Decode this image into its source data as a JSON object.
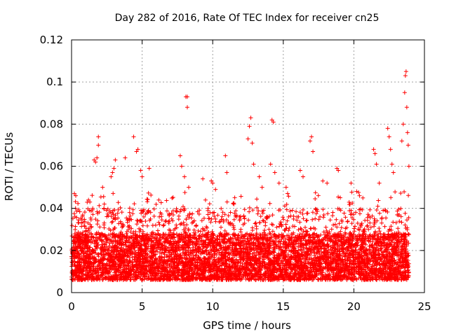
{
  "chart_data": {
    "type": "scatter",
    "title": "Day 282 of 2016, Rate Of TEC Index for receiver cn25",
    "xlabel": "GPS time / hours",
    "ylabel": "ROTI / TECUs",
    "xlim": [
      0,
      25
    ],
    "ylim": [
      0,
      0.12
    ],
    "xticks": [
      "0",
      "5",
      "10",
      "15",
      "20",
      "25"
    ],
    "yticks": [
      "0",
      "0.02",
      "0.04",
      "0.06",
      "0.08",
      "0.1",
      "0.12"
    ],
    "grid": true,
    "marker": "+",
    "color": "#ff0000",
    "series": [
      {
        "name": "ROTI",
        "note": "dense band of points between ~0.005 and ~0.04 across 0-24 h, with excursions",
        "points": [
          [
            0.2,
            0.047
          ],
          [
            0.3,
            0.046
          ],
          [
            1.2,
            0.044
          ],
          [
            1.3,
            0.043
          ],
          [
            1.5,
            0.04
          ],
          [
            1.6,
            0.063
          ],
          [
            1.7,
            0.062
          ],
          [
            1.8,
            0.064
          ],
          [
            1.9,
            0.074
          ],
          [
            1.9,
            0.07
          ],
          [
            2.2,
            0.05
          ],
          [
            2.8,
            0.055
          ],
          [
            2.9,
            0.057
          ],
          [
            3.0,
            0.059
          ],
          [
            3.1,
            0.063
          ],
          [
            3.8,
            0.064
          ],
          [
            4.4,
            0.074
          ],
          [
            4.6,
            0.067
          ],
          [
            4.7,
            0.068
          ],
          [
            4.9,
            0.058
          ],
          [
            5.0,
            0.055
          ],
          [
            5.5,
            0.059
          ],
          [
            7.7,
            0.065
          ],
          [
            7.8,
            0.06
          ],
          [
            8.0,
            0.055
          ],
          [
            8.1,
            0.093
          ],
          [
            8.2,
            0.093
          ],
          [
            8.2,
            0.088
          ],
          [
            8.3,
            0.05
          ],
          [
            9.3,
            0.054
          ],
          [
            9.9,
            0.053
          ],
          [
            10.0,
            0.052
          ],
          [
            10.2,
            0.049
          ],
          [
            10.9,
            0.065
          ],
          [
            11.0,
            0.057
          ],
          [
            11.5,
            0.042
          ],
          [
            12.5,
            0.073
          ],
          [
            12.6,
            0.079
          ],
          [
            12.7,
            0.083
          ],
          [
            12.8,
            0.071
          ],
          [
            12.9,
            0.061
          ],
          [
            13.3,
            0.055
          ],
          [
            13.5,
            0.05
          ],
          [
            14.1,
            0.061
          ],
          [
            14.2,
            0.082
          ],
          [
            14.3,
            0.081
          ],
          [
            14.4,
            0.057
          ],
          [
            14.7,
            0.052
          ],
          [
            15.2,
            0.05
          ],
          [
            16.2,
            0.058
          ],
          [
            16.4,
            0.055
          ],
          [
            16.9,
            0.072
          ],
          [
            17.0,
            0.074
          ],
          [
            17.1,
            0.067
          ],
          [
            17.8,
            0.053
          ],
          [
            18.1,
            0.052
          ],
          [
            18.8,
            0.059
          ],
          [
            18.9,
            0.058
          ],
          [
            19.8,
            0.052
          ],
          [
            20.2,
            0.048
          ],
          [
            20.4,
            0.046
          ],
          [
            21.4,
            0.068
          ],
          [
            21.5,
            0.066
          ],
          [
            21.6,
            0.061
          ],
          [
            21.8,
            0.052
          ],
          [
            22.4,
            0.078
          ],
          [
            22.5,
            0.074
          ],
          [
            22.6,
            0.068
          ],
          [
            22.7,
            0.061
          ],
          [
            22.8,
            0.057
          ],
          [
            23.4,
            0.072
          ],
          [
            23.5,
            0.08
          ],
          [
            23.6,
            0.095
          ],
          [
            23.65,
            0.103
          ],
          [
            23.7,
            0.105
          ],
          [
            23.75,
            0.088
          ],
          [
            23.8,
            0.076
          ],
          [
            23.85,
            0.07
          ],
          [
            23.9,
            0.06
          ]
        ]
      }
    ]
  }
}
